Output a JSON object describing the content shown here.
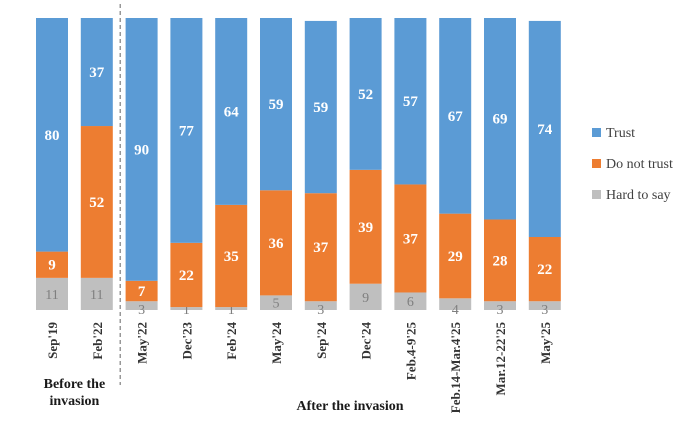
{
  "chart_data": {
    "type": "bar",
    "stacked": true,
    "categories": [
      "Sep'19",
      "Feb'22",
      "May'22",
      "Dec'23",
      "Feb'24",
      "May'24",
      "Sep'24",
      "Dec'24",
      "Feb.4-9'25",
      "Feb.14-Mar.4'25",
      "Mar.12-22'25",
      "May'25"
    ],
    "series": [
      {
        "name": "Hard to say",
        "color": "#bfbfbf",
        "values": [
          11,
          11,
          3,
          1,
          1,
          5,
          3,
          9,
          6,
          4,
          3,
          3
        ]
      },
      {
        "name": "Do not trust",
        "color": "#ed7d31",
        "values": [
          9,
          52,
          7,
          22,
          35,
          36,
          37,
          39,
          37,
          29,
          28,
          22
        ]
      },
      {
        "name": "Trust",
        "color": "#5b9bd5",
        "values": [
          80,
          37,
          90,
          77,
          64,
          59,
          59,
          52,
          57,
          67,
          69,
          74
        ]
      }
    ],
    "legend_order": [
      "Trust",
      "Do not trust",
      "Hard to say"
    ],
    "legend_position": "right",
    "groups": [
      {
        "label_lines": [
          "Before the",
          "invasion"
        ],
        "categories": [
          "Sep'19",
          "Feb'22"
        ]
      },
      {
        "label_lines": [
          "After the invasion"
        ],
        "categories": [
          "May'22",
          "Dec'23",
          "Feb'24",
          "May'24",
          "Sep'24",
          "Dec'24",
          "Feb.4-9'25",
          "Feb.14-Mar.4'25",
          "Mar.12-22'25",
          "May'25"
        ]
      }
    ],
    "ylim": [
      0,
      100
    ],
    "grid": false,
    "title": "",
    "xlabel": "",
    "ylabel": ""
  }
}
